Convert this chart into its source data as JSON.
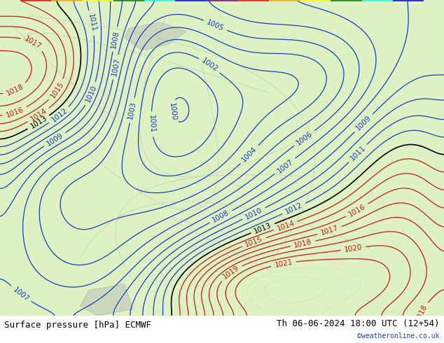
{
  "title_left": "Surface pressure [hPa] ECMWF",
  "title_right": "Th 06-06-2024 18:00 UTC (12+54)",
  "credit": "©weatheronline.co.uk",
  "background_color": "#d4e8a0",
  "land_color": "#c8e89a",
  "sea_color": "#e8f4e8",
  "contour_color_blue": "#1a3fcc",
  "contour_color_red": "#cc1a1a",
  "contour_color_black": "#000000",
  "label_fontsize": 7.5,
  "title_fontsize": 9,
  "credit_fontsize": 7,
  "figsize": [
    6.34,
    4.9
  ],
  "dpi": 100
}
